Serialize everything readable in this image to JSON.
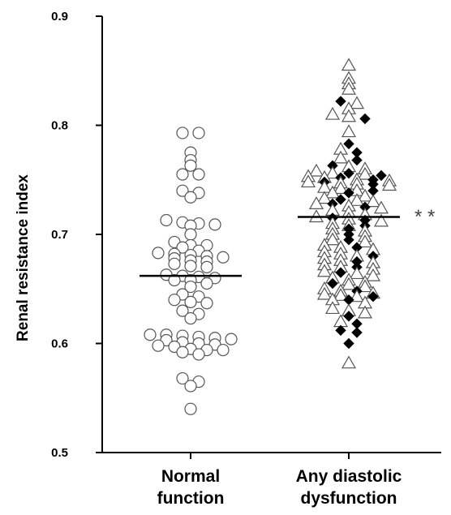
{
  "chart_data": {
    "type": "scatter",
    "ylabel": "Renal resistance index",
    "ylim": [
      0.5,
      0.9
    ],
    "yticks": [
      "0.5",
      "0.6",
      "0.7",
      "0.8",
      "0.9"
    ],
    "categories": [
      "Normal function",
      "Any diastolic dysfunction"
    ],
    "category_label_lines": [
      [
        "Normal",
        "function"
      ],
      [
        "Any diastolic",
        "dysfunction"
      ]
    ],
    "significance": "* *",
    "marker_colors": {
      "stroke": "#555555",
      "filled": "#000000",
      "line": "#000000"
    },
    "series": [
      {
        "category": "Normal function",
        "marker": "open-circle",
        "points": [
          {
            "x": 1,
            "y": 0.793
          },
          {
            "x": 1,
            "y": 0.793
          },
          {
            "x": 1,
            "y": 0.775
          },
          {
            "x": 1,
            "y": 0.768
          },
          {
            "x": 1,
            "y": 0.763
          },
          {
            "x": 1,
            "y": 0.755
          },
          {
            "x": 1,
            "y": 0.755
          },
          {
            "x": 1,
            "y": 0.74
          },
          {
            "x": 1,
            "y": 0.738
          },
          {
            "x": 1,
            "y": 0.734
          },
          {
            "x": 1,
            "y": 0.713
          },
          {
            "x": 1,
            "y": 0.711
          },
          {
            "x": 1,
            "y": 0.71
          },
          {
            "x": 1,
            "y": 0.709
          },
          {
            "x": 1,
            "y": 0.708
          },
          {
            "x": 1,
            "y": 0.7
          },
          {
            "x": 1,
            "y": 0.693
          },
          {
            "x": 1,
            "y": 0.69
          },
          {
            "x": 1,
            "y": 0.69
          },
          {
            "x": 1,
            "y": 0.688
          },
          {
            "x": 1,
            "y": 0.685
          },
          {
            "x": 1,
            "y": 0.683
          },
          {
            "x": 1,
            "y": 0.682
          },
          {
            "x": 1,
            "y": 0.681
          },
          {
            "x": 1,
            "y": 0.68
          },
          {
            "x": 1,
            "y": 0.679
          },
          {
            "x": 1,
            "y": 0.678
          },
          {
            "x": 1,
            "y": 0.676
          },
          {
            "x": 1,
            "y": 0.675
          },
          {
            "x": 1,
            "y": 0.673
          },
          {
            "x": 1,
            "y": 0.671
          },
          {
            "x": 1,
            "y": 0.67
          },
          {
            "x": 1,
            "y": 0.663
          },
          {
            "x": 1,
            "y": 0.662
          },
          {
            "x": 1,
            "y": 0.661
          },
          {
            "x": 1,
            "y": 0.66
          },
          {
            "x": 1,
            "y": 0.658
          },
          {
            "x": 1,
            "y": 0.658
          },
          {
            "x": 1,
            "y": 0.655
          },
          {
            "x": 1,
            "y": 0.652
          },
          {
            "x": 1,
            "y": 0.645
          },
          {
            "x": 1,
            "y": 0.643
          },
          {
            "x": 1,
            "y": 0.64
          },
          {
            "x": 1,
            "y": 0.638
          },
          {
            "x": 1,
            "y": 0.637
          },
          {
            "x": 1,
            "y": 0.63
          },
          {
            "x": 1,
            "y": 0.627
          },
          {
            "x": 1,
            "y": 0.623
          },
          {
            "x": 1,
            "y": 0.608
          },
          {
            "x": 1,
            "y": 0.608
          },
          {
            "x": 1,
            "y": 0.607
          },
          {
            "x": 1,
            "y": 0.606
          },
          {
            "x": 1,
            "y": 0.605
          },
          {
            "x": 1,
            "y": 0.604
          },
          {
            "x": 1,
            "y": 0.603
          },
          {
            "x": 1,
            "y": 0.601
          },
          {
            "x": 1,
            "y": 0.6
          },
          {
            "x": 1,
            "y": 0.599
          },
          {
            "x": 1,
            "y": 0.598
          },
          {
            "x": 1,
            "y": 0.597
          },
          {
            "x": 1,
            "y": 0.595
          },
          {
            "x": 1,
            "y": 0.594
          },
          {
            "x": 1,
            "y": 0.594
          },
          {
            "x": 1,
            "y": 0.592
          },
          {
            "x": 1,
            "y": 0.59
          },
          {
            "x": 1,
            "y": 0.568
          },
          {
            "x": 1,
            "y": 0.565
          },
          {
            "x": 1,
            "y": 0.561
          },
          {
            "x": 1,
            "y": 0.54
          }
        ]
      },
      {
        "category": "Any diastolic dysfunction",
        "marker": "open-triangle",
        "points": [
          {
            "x": 2,
            "y": 0.855
          },
          {
            "x": 2,
            "y": 0.843
          },
          {
            "x": 2,
            "y": 0.838
          },
          {
            "x": 2,
            "y": 0.833
          },
          {
            "x": 2,
            "y": 0.82
          },
          {
            "x": 2,
            "y": 0.815
          },
          {
            "x": 2,
            "y": 0.81
          },
          {
            "x": 2,
            "y": 0.808
          },
          {
            "x": 2,
            "y": 0.794
          },
          {
            "x": 2,
            "y": 0.778
          },
          {
            "x": 2,
            "y": 0.77
          },
          {
            "x": 2,
            "y": 0.762
          },
          {
            "x": 2,
            "y": 0.76
          },
          {
            "x": 2,
            "y": 0.758
          },
          {
            "x": 2,
            "y": 0.756
          },
          {
            "x": 2,
            "y": 0.755
          },
          {
            "x": 2,
            "y": 0.753
          },
          {
            "x": 2,
            "y": 0.752
          },
          {
            "x": 2,
            "y": 0.75
          },
          {
            "x": 2,
            "y": 0.749
          },
          {
            "x": 2,
            "y": 0.748
          },
          {
            "x": 2,
            "y": 0.747
          },
          {
            "x": 2,
            "y": 0.746
          },
          {
            "x": 2,
            "y": 0.745
          },
          {
            "x": 2,
            "y": 0.743
          },
          {
            "x": 2,
            "y": 0.742
          },
          {
            "x": 2,
            "y": 0.74
          },
          {
            "x": 2,
            "y": 0.738
          },
          {
            "x": 2,
            "y": 0.735
          },
          {
            "x": 2,
            "y": 0.733
          },
          {
            "x": 2,
            "y": 0.731
          },
          {
            "x": 2,
            "y": 0.73
          },
          {
            "x": 2,
            "y": 0.728
          },
          {
            "x": 2,
            "y": 0.726
          },
          {
            "x": 2,
            "y": 0.724
          },
          {
            "x": 2,
            "y": 0.722
          },
          {
            "x": 2,
            "y": 0.72
          },
          {
            "x": 2,
            "y": 0.718
          },
          {
            "x": 2,
            "y": 0.716
          },
          {
            "x": 2,
            "y": 0.714
          },
          {
            "x": 2,
            "y": 0.712
          },
          {
            "x": 2,
            "y": 0.71
          },
          {
            "x": 2,
            "y": 0.708
          },
          {
            "x": 2,
            "y": 0.705
          },
          {
            "x": 2,
            "y": 0.703
          },
          {
            "x": 2,
            "y": 0.7
          },
          {
            "x": 2,
            "y": 0.698
          },
          {
            "x": 2,
            "y": 0.695
          },
          {
            "x": 2,
            "y": 0.693
          },
          {
            "x": 2,
            "y": 0.69
          },
          {
            "x": 2,
            "y": 0.688
          },
          {
            "x": 2,
            "y": 0.686
          },
          {
            "x": 2,
            "y": 0.684
          },
          {
            "x": 2,
            "y": 0.682
          },
          {
            "x": 2,
            "y": 0.68
          },
          {
            "x": 2,
            "y": 0.678
          },
          {
            "x": 2,
            "y": 0.676
          },
          {
            "x": 2,
            "y": 0.674
          },
          {
            "x": 2,
            "y": 0.672
          },
          {
            "x": 2,
            "y": 0.67
          },
          {
            "x": 2,
            "y": 0.668
          },
          {
            "x": 2,
            "y": 0.666
          },
          {
            "x": 2,
            "y": 0.664
          },
          {
            "x": 2,
            "y": 0.662
          },
          {
            "x": 2,
            "y": 0.66
          },
          {
            "x": 2,
            "y": 0.658
          },
          {
            "x": 2,
            "y": 0.656
          },
          {
            "x": 2,
            "y": 0.654
          },
          {
            "x": 2,
            "y": 0.652
          },
          {
            "x": 2,
            "y": 0.65
          },
          {
            "x": 2,
            "y": 0.648
          },
          {
            "x": 2,
            "y": 0.646
          },
          {
            "x": 2,
            "y": 0.645
          },
          {
            "x": 2,
            "y": 0.644
          },
          {
            "x": 2,
            "y": 0.643
          },
          {
            "x": 2,
            "y": 0.64
          },
          {
            "x": 2,
            "y": 0.637
          },
          {
            "x": 2,
            "y": 0.632
          },
          {
            "x": 2,
            "y": 0.63
          },
          {
            "x": 2,
            "y": 0.628
          },
          {
            "x": 2,
            "y": 0.62
          },
          {
            "x": 2,
            "y": 0.582
          }
        ]
      },
      {
        "category": "Any diastolic dysfunction",
        "marker": "filled-diamond",
        "points": [
          {
            "x": 2,
            "y": 0.822
          },
          {
            "x": 2,
            "y": 0.806
          },
          {
            "x": 2,
            "y": 0.783
          },
          {
            "x": 2,
            "y": 0.775
          },
          {
            "x": 2,
            "y": 0.768
          },
          {
            "x": 2,
            "y": 0.763
          },
          {
            "x": 2,
            "y": 0.756
          },
          {
            "x": 2,
            "y": 0.754
          },
          {
            "x": 2,
            "y": 0.752
          },
          {
            "x": 2,
            "y": 0.75
          },
          {
            "x": 2,
            "y": 0.748
          },
          {
            "x": 2,
            "y": 0.746
          },
          {
            "x": 2,
            "y": 0.74
          },
          {
            "x": 2,
            "y": 0.738
          },
          {
            "x": 2,
            "y": 0.732
          },
          {
            "x": 2,
            "y": 0.728
          },
          {
            "x": 2,
            "y": 0.725
          },
          {
            "x": 2,
            "y": 0.715
          },
          {
            "x": 2,
            "y": 0.713
          },
          {
            "x": 2,
            "y": 0.708
          },
          {
            "x": 2,
            "y": 0.705
          },
          {
            "x": 2,
            "y": 0.7
          },
          {
            "x": 2,
            "y": 0.695
          },
          {
            "x": 2,
            "y": 0.688
          },
          {
            "x": 2,
            "y": 0.68
          },
          {
            "x": 2,
            "y": 0.675
          },
          {
            "x": 2,
            "y": 0.67
          },
          {
            "x": 2,
            "y": 0.665
          },
          {
            "x": 2,
            "y": 0.655
          },
          {
            "x": 2,
            "y": 0.648
          },
          {
            "x": 2,
            "y": 0.643
          },
          {
            "x": 2,
            "y": 0.64
          },
          {
            "x": 2,
            "y": 0.625
          },
          {
            "x": 2,
            "y": 0.618
          },
          {
            "x": 2,
            "y": 0.612
          },
          {
            "x": 2,
            "y": 0.61
          },
          {
            "x": 2,
            "y": 0.6
          }
        ]
      }
    ],
    "means": [
      {
        "category": "Normal function",
        "y": 0.662
      },
      {
        "category": "Any diastolic dysfunction",
        "y": 0.716
      }
    ]
  }
}
